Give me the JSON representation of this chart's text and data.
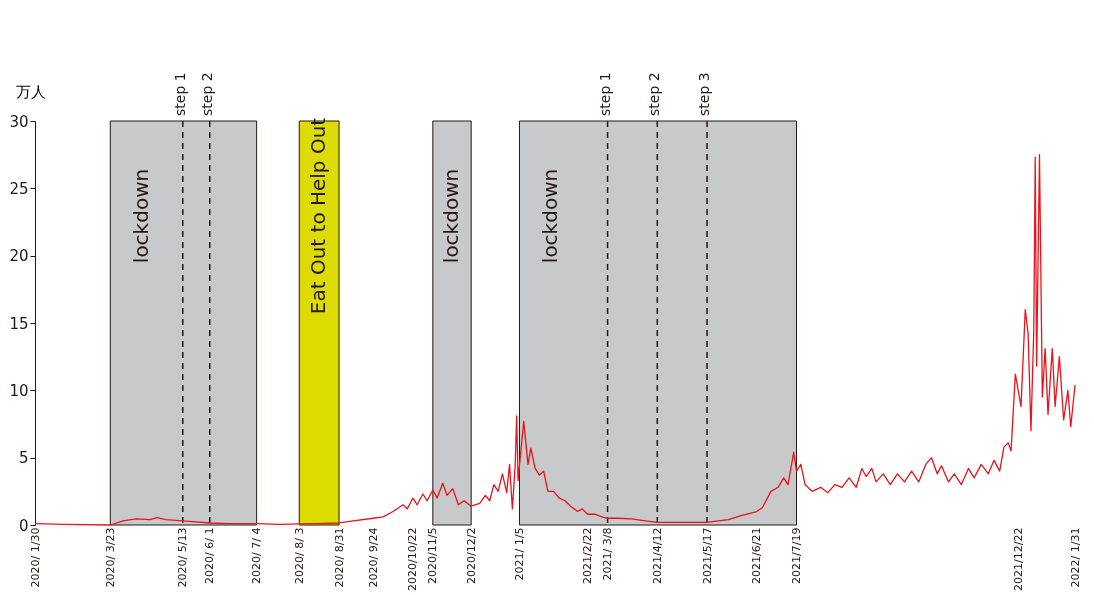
{
  "chart_data": {
    "type": "line",
    "ylabel": "万人",
    "xlim": [
      "2020-01-30",
      "2022-01-31"
    ],
    "ylim": [
      0,
      30
    ],
    "yticks": [
      0,
      5,
      10,
      15,
      20,
      25,
      30
    ],
    "xticks": [
      {
        "value": "2020-01-30",
        "label": "2020/ 1/30"
      },
      {
        "value": "2020-03-23",
        "label": "2020/ 3/23"
      },
      {
        "value": "2020-05-13",
        "label": "2020/ 5/13"
      },
      {
        "value": "2020-06-01",
        "label": "2020/ 6/ 1"
      },
      {
        "value": "2020-07-04",
        "label": "2020/ 7/ 4"
      },
      {
        "value": "2020-08-03",
        "label": "2020/ 8/ 3"
      },
      {
        "value": "2020-08-31",
        "label": "2020/ 8/31"
      },
      {
        "value": "2020-09-24",
        "label": "2020/ 9/24"
      },
      {
        "value": "2020-10-22",
        "label": "2020/10/22"
      },
      {
        "value": "2020-11-05",
        "label": "2020/11/5"
      },
      {
        "value": "2020-12-02",
        "label": "2020/12/2"
      },
      {
        "value": "2021-01-05",
        "label": "2021/ 1/5"
      },
      {
        "value": "2021-02-22",
        "label": "2021/2/22"
      },
      {
        "value": "2021-03-08",
        "label": "2021/ 3/8"
      },
      {
        "value": "2021-04-12",
        "label": "2021/4/12"
      },
      {
        "value": "2021-05-17",
        "label": "2021/5/17"
      },
      {
        "value": "2021-06-21",
        "label": "2021/6/21"
      },
      {
        "value": "2021-07-19",
        "label": "2021/7/19"
      },
      {
        "value": "2021-12-22",
        "label": "2021/12/22"
      },
      {
        "value": "2022-01-31",
        "label": "2022/ 1/31"
      }
    ],
    "grid": false,
    "line_style": "solid",
    "marker": "none",
    "x": [
      "2020-01-30",
      "2020-02-20",
      "2020-03-23",
      "2020-04-01",
      "2020-04-10",
      "2020-04-20",
      "2020-04-25",
      "2020-05-01",
      "2020-05-13",
      "2020-05-20",
      "2020-06-01",
      "2020-06-15",
      "2020-07-04",
      "2020-07-20",
      "2020-08-03",
      "2020-08-15",
      "2020-08-31",
      "2020-09-10",
      "2020-09-24",
      "2020-10-01",
      "2020-10-08",
      "2020-10-15",
      "2020-10-18",
      "2020-10-22",
      "2020-10-25",
      "2020-10-29",
      "2020-11-01",
      "2020-11-05",
      "2020-11-08",
      "2020-11-12",
      "2020-11-15",
      "2020-11-19",
      "2020-11-23",
      "2020-11-27",
      "2020-12-02",
      "2020-12-08",
      "2020-12-12",
      "2020-12-15",
      "2020-12-18",
      "2020-12-21",
      "2020-12-24",
      "2020-12-27",
      "2020-12-29",
      "2020-12-31",
      "2021-01-02",
      "2021-01-03",
      "2021-01-04",
      "2021-01-08",
      "2021-01-11",
      "2021-01-13",
      "2021-01-16",
      "2021-01-19",
      "2021-01-22",
      "2021-01-25",
      "2021-01-29",
      "2021-02-02",
      "2021-02-06",
      "2021-02-10",
      "2021-02-15",
      "2021-02-18",
      "2021-02-22",
      "2021-02-27",
      "2021-03-04",
      "2021-03-08",
      "2021-03-15",
      "2021-03-25",
      "2021-04-01",
      "2021-04-12",
      "2021-04-20",
      "2021-05-01",
      "2021-05-17",
      "2021-05-25",
      "2021-06-01",
      "2021-06-10",
      "2021-06-21",
      "2021-06-25",
      "2021-07-01",
      "2021-07-06",
      "2021-07-10",
      "2021-07-13",
      "2021-07-17",
      "2021-07-19",
      "2021-07-22",
      "2021-07-25",
      "2021-07-30",
      "2021-08-05",
      "2021-08-10",
      "2021-08-15",
      "2021-08-20",
      "2021-08-25",
      "2021-08-30",
      "2021-09-03",
      "2021-09-06",
      "2021-09-10",
      "2021-09-13",
      "2021-09-18",
      "2021-09-23",
      "2021-09-28",
      "2021-10-03",
      "2021-10-08",
      "2021-10-13",
      "2021-10-18",
      "2021-10-22",
      "2021-10-26",
      "2021-10-29",
      "2021-11-03",
      "2021-11-07",
      "2021-11-12",
      "2021-11-17",
      "2021-11-21",
      "2021-11-26",
      "2021-12-01",
      "2021-12-05",
      "2021-12-09",
      "2021-12-12",
      "2021-12-15",
      "2021-12-17",
      "2021-12-20",
      "2021-12-24",
      "2021-12-27",
      "2021-12-29",
      "2021-12-31",
      "2022-01-02",
      "2022-01-03",
      "2022-01-04",
      "2022-01-06",
      "2022-01-08",
      "2022-01-10",
      "2022-01-12",
      "2022-01-15",
      "2022-01-17",
      "2022-01-20",
      "2022-01-23",
      "2022-01-26",
      "2022-01-28",
      "2022-01-31"
    ],
    "series": [
      {
        "color": "#e8141c",
        "values": [
          0.1,
          0.05,
          0.0,
          0.3,
          0.45,
          0.4,
          0.55,
          0.4,
          0.3,
          0.25,
          0.15,
          0.1,
          0.1,
          0.05,
          0.08,
          0.1,
          0.15,
          0.3,
          0.5,
          0.6,
          1.0,
          1.5,
          1.2,
          2.0,
          1.5,
          2.3,
          1.8,
          2.6,
          2.0,
          3.1,
          2.2,
          2.7,
          1.5,
          1.8,
          1.4,
          1.6,
          2.2,
          1.8,
          3.0,
          2.5,
          3.8,
          2.4,
          4.5,
          1.2,
          4.5,
          8.1,
          3.3,
          7.7,
          4.5,
          5.7,
          4.2,
          3.7,
          4.0,
          2.5,
          2.5,
          2.0,
          1.8,
          1.4,
          1.0,
          1.2,
          0.8,
          0.8,
          0.6,
          0.5,
          0.5,
          0.45,
          0.35,
          0.2,
          0.2,
          0.2,
          0.2,
          0.3,
          0.4,
          0.7,
          1.0,
          1.3,
          2.5,
          2.8,
          3.5,
          3.0,
          5.4,
          4.0,
          4.5,
          3.0,
          2.5,
          2.8,
          2.4,
          3.0,
          2.8,
          3.5,
          2.8,
          4.2,
          3.6,
          4.2,
          3.2,
          3.8,
          3.0,
          3.8,
          3.2,
          4.0,
          3.2,
          4.5,
          5.0,
          3.8,
          4.4,
          3.2,
          3.8,
          3.0,
          4.2,
          3.5,
          4.5,
          3.8,
          4.8,
          4.0,
          5.8,
          6.1,
          5.5,
          11.2,
          8.8,
          16.0,
          14.2,
          7.0,
          14.5,
          27.3,
          11.8,
          27.5,
          9.5,
          13.1,
          8.2,
          13.1,
          8.8,
          12.5,
          7.8,
          10.0,
          7.3,
          10.4
        ]
      }
    ],
    "bands": [
      {
        "axis": "x",
        "from": "2020-03-23",
        "to": "2020-07-04",
        "label": "lockdown",
        "color": "#c8c9ca"
      },
      {
        "axis": "x",
        "from": "2020-08-03",
        "to": "2020-08-31",
        "label": "Eat Out to Help Out",
        "color": "#dcdc00"
      },
      {
        "axis": "x",
        "from": "2020-11-05",
        "to": "2020-12-02",
        "label": "lockdown",
        "color": "#c8c9ca"
      },
      {
        "axis": "x",
        "from": "2021-01-05",
        "to": "2021-07-19",
        "label": "lockdown",
        "color": "#c8c9ca"
      }
    ],
    "ref_lines": [
      {
        "axis": "x",
        "value": "2020-05-13",
        "label": "step 1",
        "line_style": "dashed",
        "color": "#231815"
      },
      {
        "axis": "x",
        "value": "2020-06-01",
        "label": "step 2",
        "line_style": "dashed",
        "color": "#231815"
      },
      {
        "axis": "x",
        "value": "2021-03-08",
        "label": "step 1",
        "line_style": "dashed",
        "color": "#231815"
      },
      {
        "axis": "x",
        "value": "2021-04-12",
        "label": "step 2",
        "line_style": "dashed",
        "color": "#231815"
      },
      {
        "axis": "x",
        "value": "2021-05-17",
        "label": "step 3",
        "line_style": "dashed",
        "color": "#231815"
      }
    ]
  }
}
